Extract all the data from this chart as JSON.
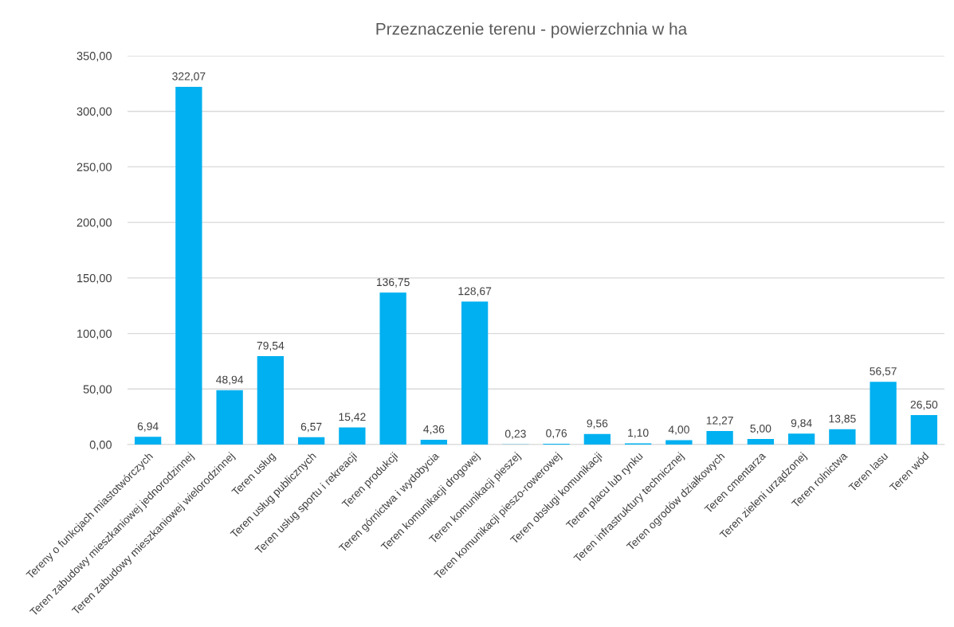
{
  "chart_data": {
    "type": "bar",
    "title": "Przeznaczenie terenu - powierzchnia w ha",
    "categories": [
      "Tereny o funkcjach miastotwórczych",
      "Teren zabudowy mieszkaniowej jednorodzinnej",
      "Teren zabudowy mieszkaniowej wielorodzinnej",
      "Teren usług",
      "Teren usług publicznych",
      "Teren usług sportu i rekreacji",
      "Teren produkcji",
      "Teren górnictwa i wydobycia",
      "Teren komunikacji drogowej",
      "Teren komunikacji pieszej",
      "Teren komunikacji pieszo-rowerowej",
      "Teren obsługi komunikacji",
      "Teren placu lub rynku",
      "Teren infrastruktury technicznej",
      "Teren ogrodów działkowych",
      "Teren cmentarza",
      "Teren zieleni urządzonej",
      "Teren rolnictwa",
      "Teren lasu",
      "Teren wód"
    ],
    "values": [
      6.94,
      322.07,
      48.94,
      79.54,
      6.57,
      15.42,
      136.75,
      4.36,
      128.67,
      0.23,
      0.76,
      9.56,
      1.1,
      4.0,
      12.27,
      5.0,
      9.84,
      13.85,
      56.57,
      26.5
    ],
    "value_labels": [
      "6,94",
      "322,07",
      "48,94",
      "79,54",
      "6,57",
      "15,42",
      "136,75",
      "4,36",
      "128,67",
      "0,23",
      "0,76",
      "9,56",
      "1,10",
      "4,00",
      "12,27",
      "5,00",
      "9,84",
      "13,85",
      "56,57",
      "26,50"
    ],
    "color": "#00b0f0",
    "ylim": [
      0,
      350
    ],
    "yticks": [
      {
        "value": 0,
        "label": "0,00"
      },
      {
        "value": 50,
        "label": "50,00"
      },
      {
        "value": 100,
        "label": "100,00"
      },
      {
        "value": 150,
        "label": "150,00"
      },
      {
        "value": 200,
        "label": "200,00"
      },
      {
        "value": 250,
        "label": "250,00"
      },
      {
        "value": 300,
        "label": "300,00"
      },
      {
        "value": 350,
        "label": "350,00"
      }
    ],
    "grid": "y"
  }
}
